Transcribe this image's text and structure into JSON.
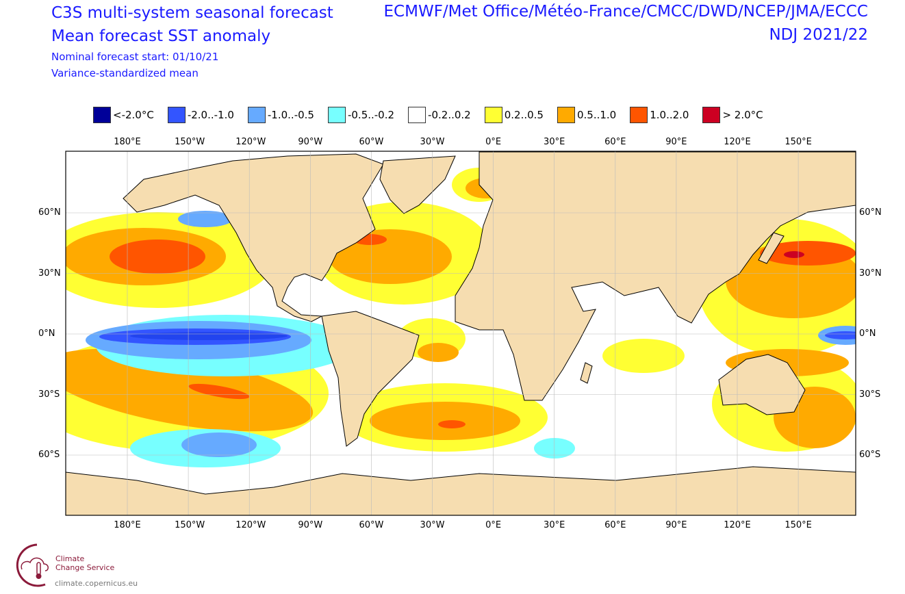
{
  "header": {
    "title": "C3S multi-system seasonal forecast",
    "subtitle": "Mean forecast SST anomaly",
    "start": "Nominal forecast start: 01/10/21",
    "method": "Variance-standardized mean",
    "systems": "ECMWF/Met Office/Météo-France/CMCC/DWD/NCEP/JMA/ECCC",
    "period": "NDJ 2021/22"
  },
  "legend": [
    {
      "label": "<-2.0°C",
      "color": "#000099"
    },
    {
      "label": "-2.0..-1.0",
      "color": "#3355ff"
    },
    {
      "label": "-1.0..-0.5",
      "color": "#66aaff"
    },
    {
      "label": "-0.5..-0.2",
      "color": "#77ffff"
    },
    {
      "label": "-0.2..0.2",
      "color": "#ffffff"
    },
    {
      "label": "0.2..0.5",
      "color": "#ffff33"
    },
    {
      "label": "0.5..1.0",
      "color": "#ffaa00"
    },
    {
      "label": "1.0..2.0",
      "color": "#ff5500"
    },
    {
      "label": "> 2.0°C",
      "color": "#cc0022"
    }
  ],
  "axes": {
    "lon": [
      "180°E",
      "150°W",
      "120°W",
      "90°W",
      "60°W",
      "30°W",
      "0°E",
      "30°E",
      "60°E",
      "90°E",
      "120°E",
      "150°E"
    ],
    "lat": [
      "60°N",
      "30°N",
      "0°N",
      "30°S",
      "60°S"
    ]
  },
  "logo": {
    "line1": "Climate",
    "line2": "Change Service",
    "url": "climate.copernicus.eu"
  },
  "colors": {
    "land": "#f6ddb0"
  }
}
